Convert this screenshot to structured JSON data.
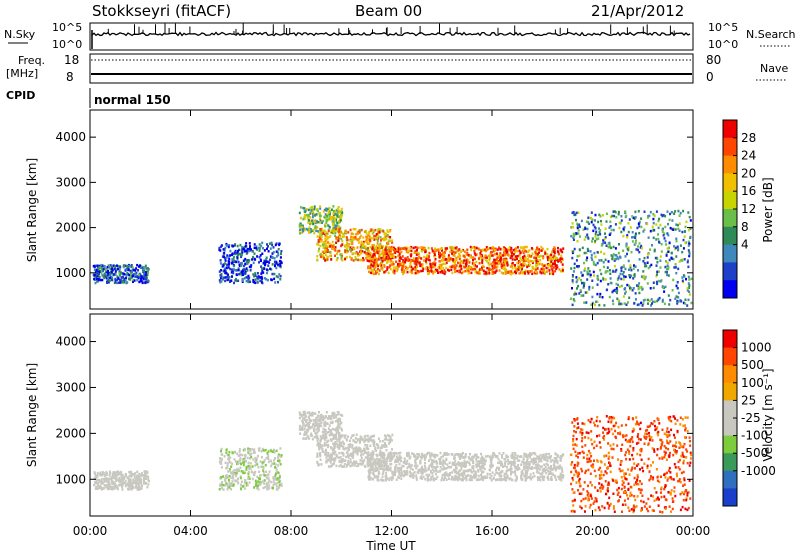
{
  "header": {
    "station": "Stokkseyri (fitACF)",
    "beam": "Beam 00",
    "date": "21/Apr/2012"
  },
  "side_labels": {
    "nsky": "N.Sky",
    "nsearch": "N.Search",
    "freq_line1": "Freq.",
    "freq_line2": "[MHz]",
    "nave": "Nave",
    "cpid": "CPID"
  },
  "noise_axis": {
    "left_ticks": [
      "10^5",
      "10^0"
    ],
    "right_ticks": [
      "10^5",
      "10^0"
    ]
  },
  "freq_axis": {
    "left_ticks": [
      "18",
      "8"
    ],
    "right_ticks": [
      "80",
      "0"
    ]
  },
  "cpid_text": "normal 150",
  "chart_data": [
    {
      "type": "heatmap",
      "name": "Power",
      "ylabel": "Slant Range [km]",
      "ylim": [
        200,
        4600
      ],
      "yticks": [
        1000,
        2000,
        3000,
        4000
      ],
      "xlim": [
        0,
        24
      ],
      "colorbar": {
        "label": "Power [dB]",
        "ticks": [
          "28",
          "24",
          "20",
          "16",
          "12",
          "8",
          "4"
        ],
        "colors": [
          "#0000ee",
          "#1e40c8",
          "#3f88bc",
          "#2e8b57",
          "#6abf4b",
          "#c8d400",
          "#f0c000",
          "#ff8c00",
          "#ff4500",
          "#ee0000"
        ]
      },
      "echo_bands": [
        {
          "t": [
            8.3,
            10.0
          ],
          "range": [
            1900,
            2500
          ],
          "level": 0.45
        },
        {
          "t": [
            9.0,
            12.0
          ],
          "range": [
            1300,
            2000
          ],
          "level": 0.7
        },
        {
          "t": [
            11.0,
            18.8
          ],
          "range": [
            1000,
            1600
          ],
          "level": 0.8
        },
        {
          "t": [
            0.1,
            2.3
          ],
          "range": [
            800,
            1200
          ],
          "level": 0.2
        },
        {
          "t": [
            5.1,
            7.6
          ],
          "range": [
            800,
            1700
          ],
          "level": 0.15
        },
        {
          "t": [
            19.1,
            23.9
          ],
          "range": [
            300,
            2400
          ],
          "level": 0.3
        }
      ]
    },
    {
      "type": "heatmap",
      "name": "Velocity",
      "ylabel": "Slant Range [km]",
      "ylim": [
        200,
        4600
      ],
      "yticks": [
        1000,
        2000,
        3000,
        4000
      ],
      "xlim": [
        0,
        24
      ],
      "xticks": [
        "00:00",
        "04:00",
        "08:00",
        "12:00",
        "16:00",
        "20:00",
        "00:00"
      ],
      "xlabel": "Time UT",
      "colorbar": {
        "label": "Velocity [m s⁻¹]",
        "ticks": [
          "1000",
          "500",
          "100",
          "25",
          "-25",
          "-100",
          "-500",
          "-1000"
        ],
        "colors": [
          "#1a3fcc",
          "#2f6fbf",
          "#3a9a5a",
          "#7ccc3c",
          "#c8c8c0",
          "#c8c8c0",
          "#f0a800",
          "#ff8c00",
          "#ff4500",
          "#ee0000"
        ]
      },
      "echo_bands": [
        {
          "t": [
            8.3,
            10.0
          ],
          "range": [
            1900,
            2500
          ],
          "level": 0.5
        },
        {
          "t": [
            9.0,
            12.0
          ],
          "range": [
            1300,
            2000
          ],
          "level": 0.5
        },
        {
          "t": [
            11.0,
            18.8
          ],
          "range": [
            1000,
            1600
          ],
          "level": 0.5
        },
        {
          "t": [
            0.1,
            2.3
          ],
          "range": [
            800,
            1200
          ],
          "level": 0.5
        },
        {
          "t": [
            5.1,
            7.6
          ],
          "range": [
            800,
            1700
          ],
          "level": 0.45
        },
        {
          "t": [
            19.1,
            23.9
          ],
          "range": [
            300,
            2400
          ],
          "level": 0.85
        }
      ]
    }
  ]
}
